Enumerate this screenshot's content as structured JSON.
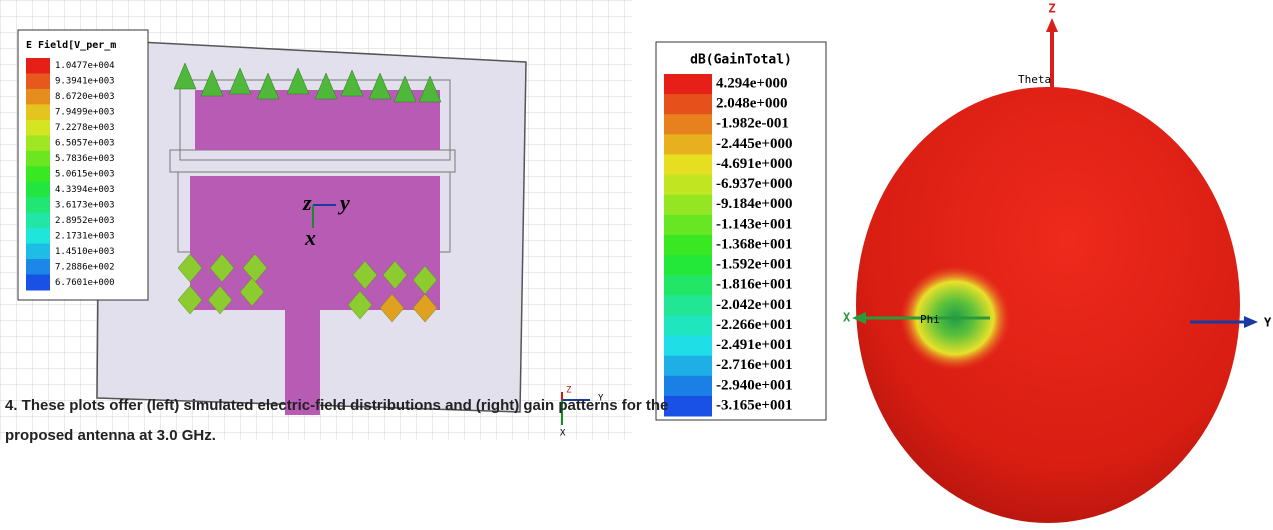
{
  "left_plot": {
    "legend": {
      "title": "E Field[V_per_m",
      "labels": [
        "1.0477e+004",
        "9.3941e+003",
        "8.6720e+003",
        "7.9499e+003",
        "7.2278e+003",
        "6.5057e+003",
        "5.7836e+003",
        "5.0615e+003",
        "4.3394e+003",
        "3.6173e+003",
        "2.8952e+003",
        "2.1731e+003",
        "1.4510e+003",
        "7.2886e+002",
        "6.7601e+000"
      ]
    },
    "axes": {
      "z": "z",
      "y": "y",
      "x": "x"
    },
    "triad": {
      "z": "Z",
      "y": "Y",
      "x": "X"
    }
  },
  "right_plot": {
    "legend": {
      "title": "dB(GainTotal)",
      "labels": [
        "4.294e+000",
        "2.048e+000",
        "-1.982e-001",
        "-2.445e+000",
        "-4.691e+000",
        "-6.937e+000",
        "-9.184e+000",
        "-1.143e+001",
        "-1.368e+001",
        "-1.592e+001",
        "-1.816e+001",
        "-2.042e+001",
        "-2.266e+001",
        "-2.491e+001",
        "-2.716e+001",
        "-2.940e+001",
        "-3.165e+001"
      ]
    },
    "axes": {
      "z": "Z",
      "theta": "Theta",
      "x": "X",
      "phi": "Phi",
      "y": "Y"
    }
  },
  "caption": {
    "lines": [
      "4. These plots offer (left) simulated electric-field distributions and (right) gain patterns for the",
      "proposed antenna at 3.0 GHz."
    ]
  }
}
